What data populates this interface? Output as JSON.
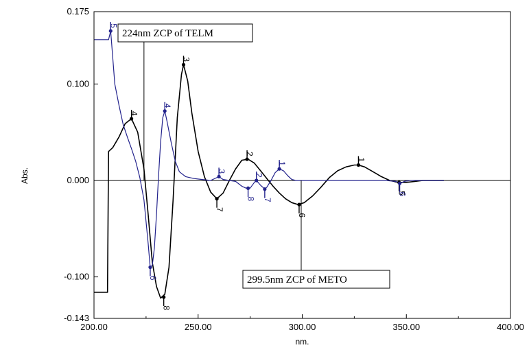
{
  "chart_data": {
    "type": "line",
    "xlabel": "nm.",
    "ylabel": "Abs.",
    "xlim": [
      200,
      400
    ],
    "ylim": [
      -0.143,
      0.175
    ],
    "x_ticks": [
      {
        "v": 200,
        "label": "200.00"
      },
      {
        "v": 250,
        "label": "250.00"
      },
      {
        "v": 300,
        "label": "300.00"
      },
      {
        "v": 350,
        "label": "350.00"
      },
      {
        "v": 400,
        "label": "400.00"
      }
    ],
    "y_ticks": [
      {
        "v": 0.175,
        "label": "0.175"
      },
      {
        "v": 0.1,
        "label": "0.100"
      },
      {
        "v": 0.0,
        "label": "0.000"
      },
      {
        "v": -0.1,
        "label": "-0.100"
      },
      {
        "v": -0.143,
        "label": "-0.143"
      }
    ],
    "series": [
      {
        "color": "#000000",
        "points": [
          [
            200,
            -0.116
          ],
          [
            206.5,
            -0.116
          ],
          [
            207,
            0.03
          ],
          [
            209,
            0.034
          ],
          [
            212,
            0.045
          ],
          [
            215,
            0.059
          ],
          [
            218,
            0.064
          ],
          [
            221,
            0.05
          ],
          [
            224,
            0.012
          ],
          [
            226,
            -0.035
          ],
          [
            228,
            -0.085
          ],
          [
            230,
            -0.11
          ],
          [
            232,
            -0.122
          ],
          [
            234,
            -0.118
          ],
          [
            236,
            -0.09
          ],
          [
            238,
            -0.02
          ],
          [
            240,
            0.065
          ],
          [
            242,
            0.11
          ],
          [
            243,
            0.12
          ],
          [
            245,
            0.103
          ],
          [
            247,
            0.07
          ],
          [
            250,
            0.03
          ],
          [
            253,
            0.004
          ],
          [
            256,
            -0.012
          ],
          [
            259,
            -0.019
          ],
          [
            262,
            -0.013
          ],
          [
            265,
            0.0
          ],
          [
            268,
            0.012
          ],
          [
            271,
            0.021
          ],
          [
            274,
            0.022
          ],
          [
            277,
            0.018
          ],
          [
            280,
            0.01
          ],
          [
            283,
            0.002
          ],
          [
            286,
            -0.006
          ],
          [
            289,
            -0.013
          ],
          [
            292,
            -0.019
          ],
          [
            295,
            -0.023
          ],
          [
            298,
            -0.025
          ],
          [
            301,
            -0.023
          ],
          [
            305,
            -0.016
          ],
          [
            309,
            -0.007
          ],
          [
            313,
            0.003
          ],
          [
            317,
            0.01
          ],
          [
            321,
            0.014
          ],
          [
            325,
            0.016
          ],
          [
            327,
            0.016
          ],
          [
            330,
            0.014
          ],
          [
            334,
            0.009
          ],
          [
            338,
            0.004
          ],
          [
            342,
            0.0
          ],
          [
            346,
            -0.002
          ],
          [
            350,
            -0.002
          ],
          [
            354,
            -0.001
          ],
          [
            358,
            0.0
          ],
          [
            362,
            0.0
          ],
          [
            366,
            0.0
          ],
          [
            368,
            0.0
          ]
        ]
      },
      {
        "color": "#22228c",
        "points": [
          [
            200,
            0.146
          ],
          [
            207,
            0.146
          ],
          [
            208,
            0.155
          ],
          [
            210,
            0.1
          ],
          [
            212,
            0.078
          ],
          [
            214,
            0.058
          ],
          [
            216,
            0.045
          ],
          [
            218,
            0.033
          ],
          [
            220,
            0.02
          ],
          [
            222,
            0.003
          ],
          [
            224,
            -0.02
          ],
          [
            226,
            -0.065
          ],
          [
            227,
            -0.09
          ],
          [
            228,
            -0.088
          ],
          [
            229,
            -0.07
          ],
          [
            230,
            -0.035
          ],
          [
            231,
            0.005
          ],
          [
            232,
            0.04
          ],
          [
            233,
            0.065
          ],
          [
            234,
            0.072
          ],
          [
            235,
            0.062
          ],
          [
            237,
            0.04
          ],
          [
            239,
            0.02
          ],
          [
            241,
            0.009
          ],
          [
            244,
            0.004
          ],
          [
            248,
            0.002
          ],
          [
            252,
            0.001
          ],
          [
            256,
            0.0
          ],
          [
            260,
            0.004
          ],
          [
            262,
            0.001
          ],
          [
            265,
            0.0
          ],
          [
            268,
            -0.001
          ],
          [
            271,
            -0.006
          ],
          [
            273,
            -0.008
          ],
          [
            275,
            -0.008
          ],
          [
            277,
            -0.002
          ],
          [
            278,
            0.0
          ],
          [
            280,
            -0.005
          ],
          [
            282,
            -0.009
          ],
          [
            283,
            -0.007
          ],
          [
            285,
            0.0
          ],
          [
            287,
            0.008
          ],
          [
            289,
            0.012
          ],
          [
            291,
            0.01
          ],
          [
            293,
            0.005
          ],
          [
            295,
            0.001
          ],
          [
            297,
            0.0
          ],
          [
            300,
            0.0
          ],
          [
            330,
            0.0
          ],
          [
            340,
            0.0
          ],
          [
            345,
            -0.001
          ],
          [
            347,
            -0.003
          ],
          [
            349,
            -0.001
          ],
          [
            352,
            0.0
          ],
          [
            360,
            0.0
          ],
          [
            368,
            0.0
          ]
        ]
      }
    ],
    "peak_markers": [
      {
        "x": 218,
        "y": 0.064,
        "label": "4",
        "dir": "up",
        "series": 0
      },
      {
        "x": 243,
        "y": 0.12,
        "label": "3",
        "dir": "up",
        "series": 0
      },
      {
        "x": 233.5,
        "y": -0.121,
        "label": "8",
        "dir": "down",
        "series": 0
      },
      {
        "x": 259,
        "y": -0.019,
        "label": "7",
        "dir": "down",
        "series": 0
      },
      {
        "x": 273.5,
        "y": 0.022,
        "label": "2",
        "dir": "up",
        "series": 0
      },
      {
        "x": 298.5,
        "y": -0.025,
        "label": "6",
        "dir": "down",
        "series": 0
      },
      {
        "x": 327,
        "y": 0.016,
        "label": "1",
        "dir": "up",
        "series": 0
      },
      {
        "x": 346.5,
        "y": -0.002,
        "label": "5",
        "dir": "down",
        "series": 0
      },
      {
        "x": 208,
        "y": 0.155,
        "label": "5",
        "dir": "up",
        "series": 1
      },
      {
        "x": 227,
        "y": -0.09,
        "label": "6",
        "dir": "down",
        "series": 1
      },
      {
        "x": 234,
        "y": 0.072,
        "label": "4",
        "dir": "up",
        "series": 1
      },
      {
        "x": 260,
        "y": 0.004,
        "label": "3",
        "dir": "up",
        "series": 1
      },
      {
        "x": 274,
        "y": -0.008,
        "label": "8",
        "dir": "down",
        "series": 1
      },
      {
        "x": 278,
        "y": 0.0,
        "label": "2",
        "dir": "up",
        "series": 1
      },
      {
        "x": 282,
        "y": -0.009,
        "label": "7",
        "dir": "down",
        "series": 1
      },
      {
        "x": 289,
        "y": 0.012,
        "label": "1",
        "dir": "up",
        "series": 1
      },
      {
        "x": 346.8,
        "y": -0.003,
        "label": "6",
        "dir": "down",
        "series": 1
      }
    ],
    "annotations": [
      {
        "text": "224nm ZCP of TELM",
        "x": 224,
        "box_corner": "top-left"
      },
      {
        "text": "299.5nm ZCP of METO",
        "x": 299.5,
        "box_corner": "bottom-right"
      }
    ]
  }
}
